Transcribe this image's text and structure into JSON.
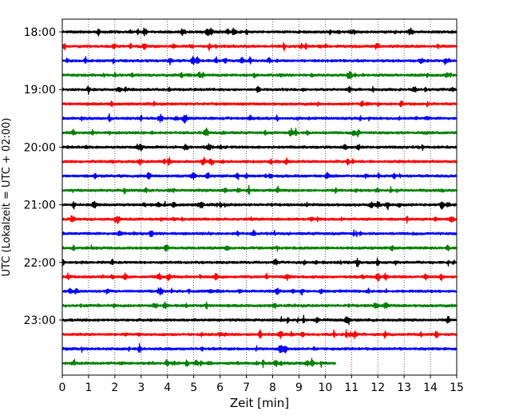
{
  "chart_data": {
    "type": "line",
    "title": "",
    "xlabel": "Zeit  [min]",
    "ylabel": "UTC (Lokalzeit = UTC + 02:00)",
    "xlim": [
      0,
      15
    ],
    "x_ticks": [
      "0",
      "1",
      "2",
      "3",
      "4",
      "5",
      "6",
      "7",
      "8",
      "9",
      "10",
      "11",
      "12",
      "13",
      "14",
      "15"
    ],
    "y_ticks": [
      {
        "label": "18:00",
        "trace_index": 0
      },
      {
        "label": "19:00",
        "trace_index": 4
      },
      {
        "label": "20:00",
        "trace_index": 8
      },
      {
        "label": "21:00",
        "trace_index": 12
      },
      {
        "label": "22:00",
        "trace_index": 16
      },
      {
        "label": "23:00",
        "trace_index": 20
      }
    ],
    "grid": "vertical dotted",
    "trace_colors": [
      "#000000",
      "#ff0000",
      "#0000ff",
      "#008000"
    ],
    "trace_count": 24,
    "trace_minutes": 15,
    "last_trace_end_min": 10.4,
    "traces": [
      {
        "start": "18:00",
        "color": "#000000",
        "end_min": 15
      },
      {
        "start": "18:15",
        "color": "#ff0000",
        "end_min": 15
      },
      {
        "start": "18:30",
        "color": "#0000ff",
        "end_min": 15
      },
      {
        "start": "18:45",
        "color": "#008000",
        "end_min": 15
      },
      {
        "start": "19:00",
        "color": "#000000",
        "end_min": 15
      },
      {
        "start": "19:15",
        "color": "#ff0000",
        "end_min": 15
      },
      {
        "start": "19:30",
        "color": "#0000ff",
        "end_min": 15
      },
      {
        "start": "19:45",
        "color": "#008000",
        "end_min": 15
      },
      {
        "start": "20:00",
        "color": "#000000",
        "end_min": 15
      },
      {
        "start": "20:15",
        "color": "#ff0000",
        "end_min": 15
      },
      {
        "start": "20:30",
        "color": "#0000ff",
        "end_min": 15
      },
      {
        "start": "20:45",
        "color": "#008000",
        "end_min": 15
      },
      {
        "start": "21:00",
        "color": "#000000",
        "end_min": 15
      },
      {
        "start": "21:15",
        "color": "#ff0000",
        "end_min": 15
      },
      {
        "start": "21:30",
        "color": "#0000ff",
        "end_min": 15
      },
      {
        "start": "21:45",
        "color": "#008000",
        "end_min": 15
      },
      {
        "start": "22:00",
        "color": "#000000",
        "end_min": 15
      },
      {
        "start": "22:15",
        "color": "#ff0000",
        "end_min": 15
      },
      {
        "start": "22:30",
        "color": "#0000ff",
        "end_min": 15
      },
      {
        "start": "22:45",
        "color": "#008000",
        "end_min": 15
      },
      {
        "start": "23:00",
        "color": "#000000",
        "end_min": 15
      },
      {
        "start": "23:15",
        "color": "#ff0000",
        "end_min": 15
      },
      {
        "start": "23:30",
        "color": "#0000ff",
        "end_min": 15
      },
      {
        "start": "23:45",
        "color": "#008000",
        "end_min": 10.4
      }
    ]
  }
}
